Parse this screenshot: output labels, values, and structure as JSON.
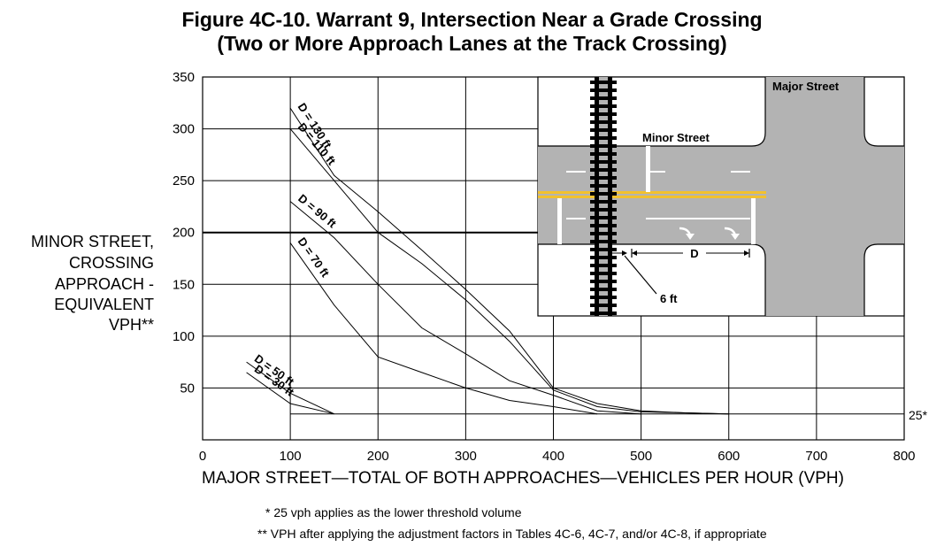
{
  "title_line1": "Figure 4C-10.  Warrant 9, Intersection Near a Grade Crossing",
  "title_line2": "(Two or More Approach Lanes at the Track Crossing)",
  "ylabel_lines": [
    "MINOR STREET,",
    "CROSSING",
    "APPROACH -",
    "EQUIVALENT",
    "VPH**"
  ],
  "xlabel": "MAJOR STREET—TOTAL OF BOTH APPROACHES—VEHICLES PER HOUR (VPH)",
  "footnote1": "*  25 vph applies as the lower threshold volume",
  "footnote2": "**  VPH after applying the adjustment factors in Tables 4C-6, 4C-7, and/or 4C-8, if appropriate",
  "threshold_label": "25*",
  "inset": {
    "major_street_label": "Major  Street",
    "minor_street_label": "Minor Street",
    "d_label": "D",
    "six_ft_label": "6 ft"
  },
  "colors": {
    "road": "#b3b3b3",
    "yellow_line": "#f2c12e",
    "track": "#000000"
  },
  "chart_data": {
    "type": "line",
    "x_ticks": [
      0,
      100,
      200,
      300,
      400,
      500,
      600,
      700,
      800
    ],
    "y_ticks": [
      50,
      100,
      150,
      200,
      250,
      300,
      350
    ],
    "xlim": [
      0,
      800
    ],
    "ylim": [
      0,
      350
    ],
    "grid": true,
    "threshold": 25,
    "series": [
      {
        "name": "D = 130 ft",
        "x": [
          100,
          150,
          200,
          250,
          300,
          350,
          400,
          450,
          500,
          550,
          600
        ],
        "y": [
          320,
          255,
          220,
          183,
          145,
          105,
          50,
          35,
          28,
          26,
          25
        ]
      },
      {
        "name": "D = 110 ft",
        "x": [
          100,
          150,
          200,
          250,
          300,
          350,
          400,
          450,
          500,
          550,
          600
        ],
        "y": [
          300,
          250,
          200,
          170,
          135,
          95,
          48,
          32,
          27,
          26,
          25
        ]
      },
      {
        "name": "D = 90 ft",
        "x": [
          100,
          150,
          200,
          250,
          300,
          350,
          400,
          450,
          500
        ],
        "y": [
          230,
          195,
          150,
          108,
          83,
          57,
          43,
          28,
          25
        ]
      },
      {
        "name": "D = 70 ft",
        "x": [
          100,
          150,
          200,
          250,
          300,
          350,
          400,
          450
        ],
        "y": [
          190,
          130,
          80,
          65,
          50,
          38,
          32,
          25
        ]
      },
      {
        "name": "D = 50 ft",
        "x": [
          50,
          100,
          150
        ],
        "y": [
          75,
          45,
          25
        ]
      },
      {
        "name": "D = 30 ft",
        "x": [
          50,
          100,
          150
        ],
        "y": [
          65,
          35,
          25
        ]
      }
    ]
  }
}
